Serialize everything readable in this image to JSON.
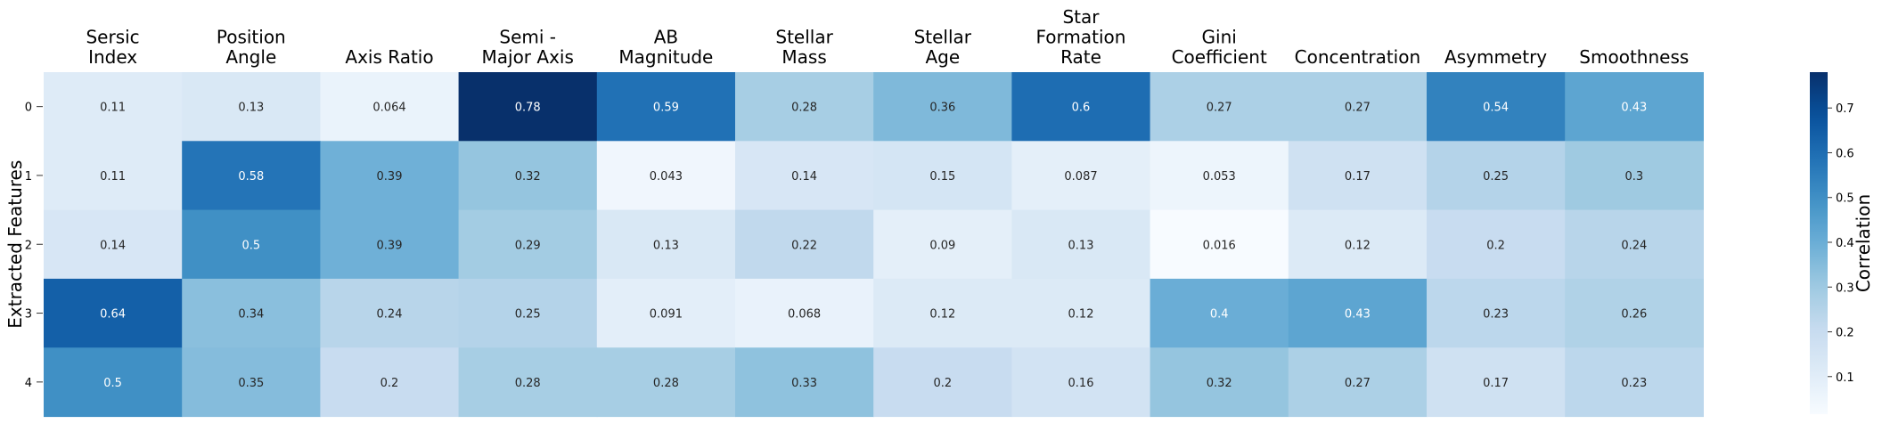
{
  "chart_data": {
    "type": "heatmap",
    "ylabel": "Extracted Features",
    "rows": [
      "0",
      "1",
      "2",
      "3",
      "4"
    ],
    "columns": [
      [
        "Sersic",
        "Index"
      ],
      [
        "Position",
        "Angle"
      ],
      [
        "Axis Ratio"
      ],
      [
        "Semi -",
        "Major Axis"
      ],
      [
        "AB",
        "Magnitude"
      ],
      [
        "Stellar",
        "Mass"
      ],
      [
        "Stellar",
        "Age"
      ],
      [
        "Star",
        "Formation",
        "Rate"
      ],
      [
        "Gini",
        "Coefficient"
      ],
      [
        "Concentration"
      ],
      [
        "Asymmetry"
      ],
      [
        "Smoothness"
      ]
    ],
    "values": [
      [
        0.11,
        0.13,
        0.064,
        0.78,
        0.59,
        0.28,
        0.36,
        0.6,
        0.27,
        0.27,
        0.54,
        0.43
      ],
      [
        0.11,
        0.58,
        0.39,
        0.32,
        0.043,
        0.14,
        0.15,
        0.087,
        0.053,
        0.17,
        0.25,
        0.3
      ],
      [
        0.14,
        0.5,
        0.39,
        0.29,
        0.13,
        0.22,
        0.09,
        0.13,
        0.016,
        0.12,
        0.2,
        0.24
      ],
      [
        0.64,
        0.34,
        0.24,
        0.25,
        0.091,
        0.068,
        0.12,
        0.12,
        0.4,
        0.43,
        0.23,
        0.26
      ],
      [
        0.5,
        0.35,
        0.2,
        0.28,
        0.28,
        0.33,
        0.2,
        0.16,
        0.32,
        0.27,
        0.17,
        0.23
      ]
    ],
    "colorbar": {
      "label": "Correlation",
      "range": [
        0.0,
        0.8
      ],
      "ticks": [
        0.1,
        0.2,
        0.3,
        0.4,
        0.5,
        0.6,
        0.7
      ]
    },
    "colormap": "Blues"
  }
}
